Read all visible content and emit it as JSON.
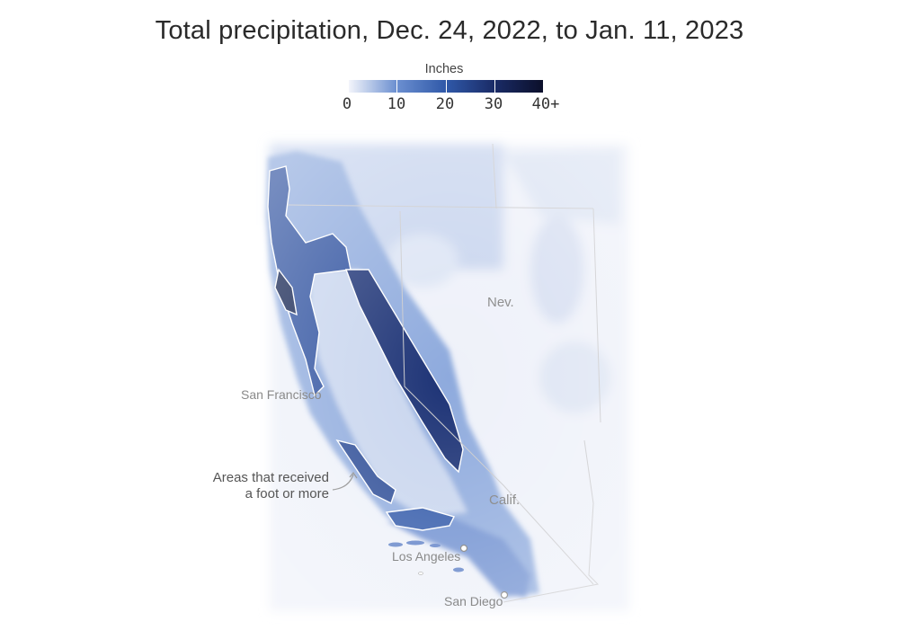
{
  "title": "Total precipitation, Dec. 24, 2022, to Jan. 11, 2023",
  "legend": {
    "title": "Inches",
    "ticks": [
      "0",
      "10",
      "20",
      "30",
      "40+"
    ],
    "colors": [
      "#f3f5fb",
      "#6b8fd0",
      "#2f58a8",
      "#1a2b66",
      "#0b0f2a"
    ]
  },
  "map": {
    "states": [
      "Nev.",
      "Calif."
    ],
    "cities": [
      "San Francisco",
      "Los Angeles",
      "San Diego"
    ],
    "annotation": "Areas that received\na foot or more",
    "annotation_lines": [
      "Areas that received",
      "a foot or more"
    ]
  }
}
